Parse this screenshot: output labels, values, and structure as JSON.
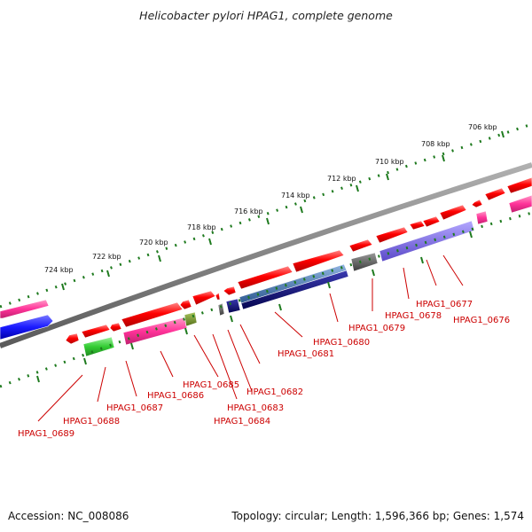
{
  "title": "Helicobacter pylori HPAG1, complete genome",
  "footer": {
    "accession": "Accession: NC_008086",
    "summary": "Topology: circular; Length: 1,596,366 bp; Genes: 1,574"
  },
  "scale_labels": [
    "706 kbp",
    "708 kbp",
    "710 kbp",
    "712 kbp",
    "714 kbp",
    "716 kbp",
    "718 kbp",
    "720 kbp",
    "722 kbp",
    "724 kbp"
  ],
  "gene_labels": [
    "HPAG1_0676",
    "HPAG1_0677",
    "HPAG1_0678",
    "HPAG1_0679",
    "HPAG1_0680",
    "HPAG1_0681",
    "HPAG1_0682",
    "HPAG1_0683",
    "HPAG1_0684",
    "HPAG1_0685",
    "HPAG1_0686",
    "HPAG1_0687",
    "HPAG1_0688",
    "HPAG1_0689"
  ],
  "colors": {
    "gene_cds": "#ff0000",
    "label": "#cc0000",
    "ruler": "#1e7a1e",
    "backbone": "#808080",
    "magenta": "#ff3399",
    "blue": "#1a1aff",
    "green": "#33cc33",
    "olive": "#6b8e23",
    "steelblue": "#4a7ab8",
    "navy": "#0a0a78",
    "lavender": "#7b68ee",
    "gray": "#606060"
  }
}
